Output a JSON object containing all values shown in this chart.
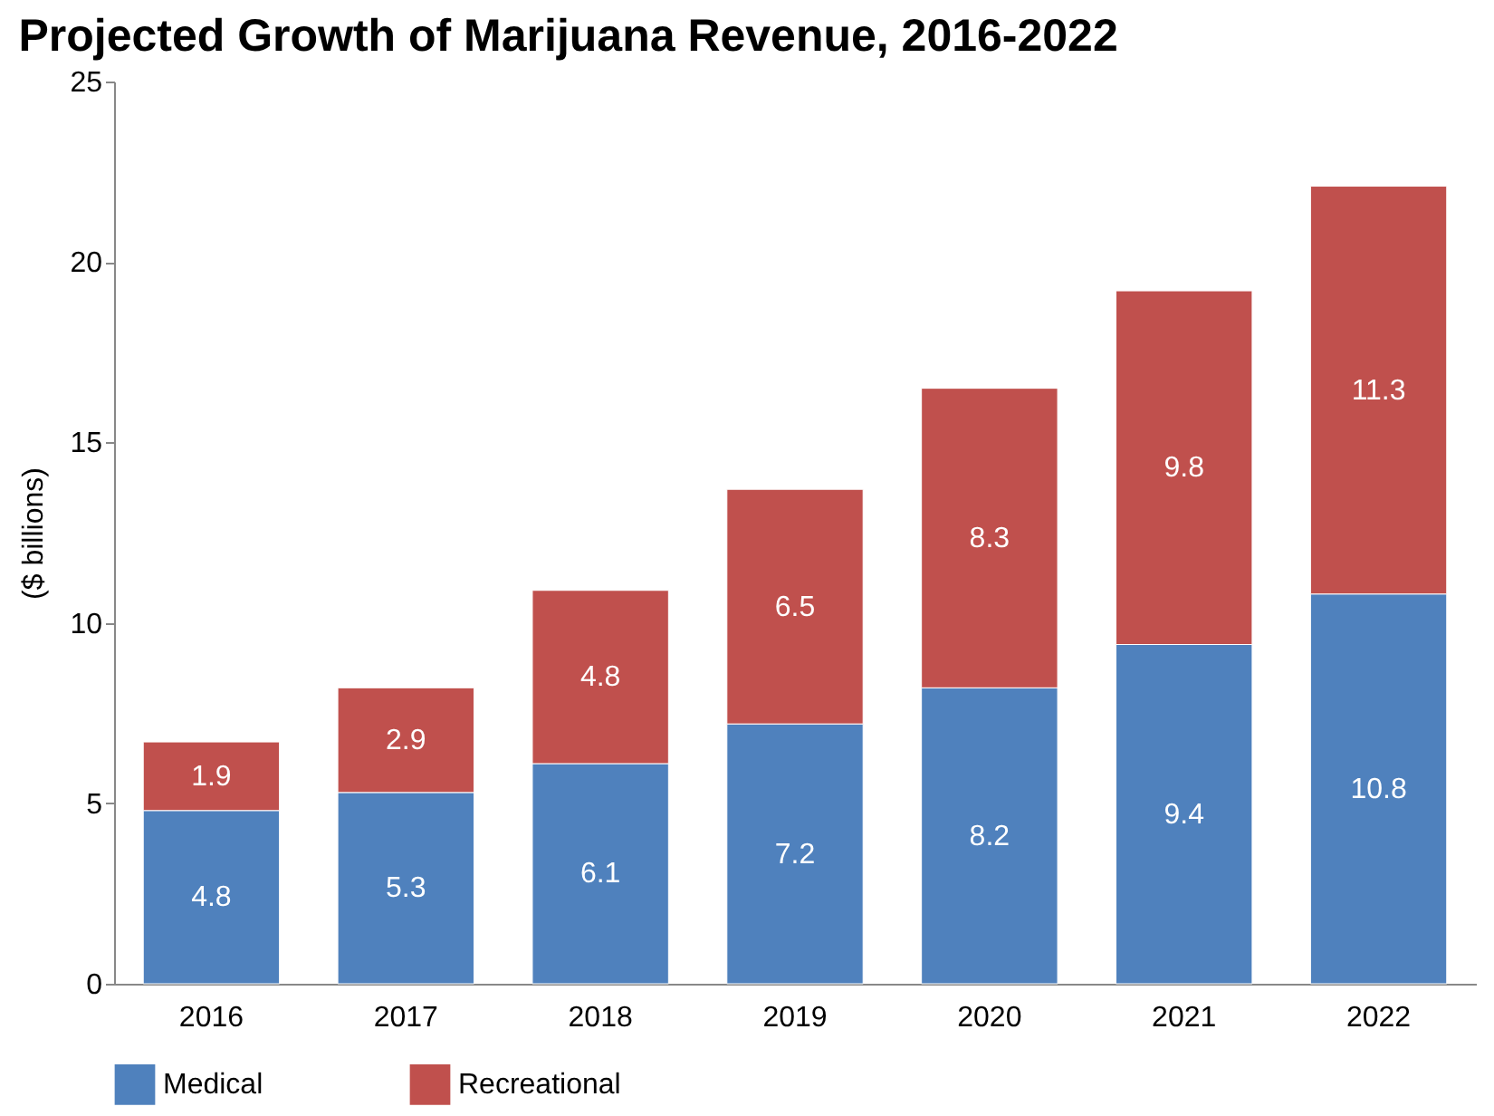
{
  "chart_data": {
    "type": "bar",
    "title": "Projected Growth of Marijuana Revenue, 2016-2022",
    "ylabel": "($ billions)",
    "categories": [
      "2016",
      "2017",
      "2018",
      "2019",
      "2020",
      "2021",
      "2022"
    ],
    "series": [
      {
        "name": "Medical",
        "color": "#4f81bd",
        "values": [
          4.8,
          5.3,
          6.1,
          7.2,
          8.2,
          9.4,
          10.8
        ]
      },
      {
        "name": "Recreational",
        "color": "#c0504d",
        "values": [
          1.9,
          2.9,
          4.8,
          6.5,
          8.3,
          9.8,
          11.3
        ]
      }
    ],
    "stacked": true,
    "ylim": [
      0,
      25
    ],
    "yticks": [
      0,
      5,
      10,
      15,
      20,
      25
    ],
    "grid": false,
    "legend": "bottom",
    "data_labels": true
  }
}
